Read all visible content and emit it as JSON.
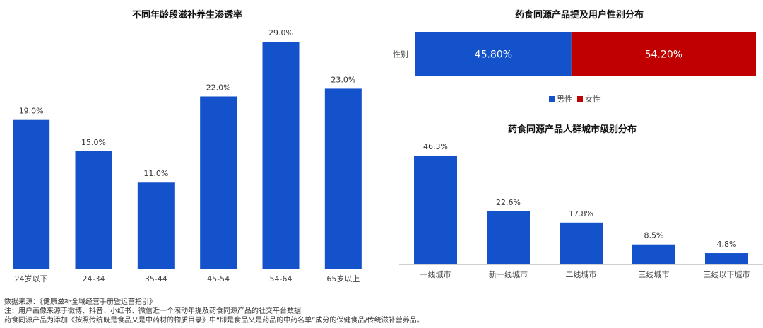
{
  "chart_data": [
    {
      "type": "bar",
      "title": "不同年龄段滋补养生渗透率",
      "categories": [
        "24岁以下",
        "24-34",
        "35-44",
        "45-54",
        "54-64",
        "65岁以上"
      ],
      "values": [
        19.0,
        15.0,
        11.0,
        22.0,
        29.0,
        23.0
      ],
      "value_labels": [
        "19.0%",
        "15.0%",
        "11.0%",
        "22.0%",
        "29.0%",
        "23.0%"
      ],
      "ylim": [
        0,
        30
      ],
      "grid": false,
      "color": "#1452cc"
    },
    {
      "type": "bar",
      "stacked": true,
      "orientation": "horizontal",
      "title": "药食同源产品提及用户性别分布",
      "categories": [
        "性别"
      ],
      "series": [
        {
          "name": "男性",
          "values": [
            45.8
          ],
          "label": "45.80%",
          "color": "#1452cc"
        },
        {
          "name": "女性",
          "values": [
            54.2
          ],
          "label": "54.20%",
          "color": "#c00000"
        }
      ],
      "legend": "bottom",
      "xlim": [
        0,
        100
      ]
    },
    {
      "type": "bar",
      "title": "药食同源产品人群城市级别分布",
      "categories": [
        "一线城市",
        "新一线城市",
        "二线城市",
        "三线城市",
        "三线以下城市"
      ],
      "values": [
        46.3,
        22.6,
        17.8,
        8.5,
        4.8
      ],
      "value_labels": [
        "46.3%",
        "22.6%",
        "17.8%",
        "8.5%",
        "4.8%"
      ],
      "ylim": [
        0,
        50
      ],
      "grid": false,
      "color": "#1452cc"
    }
  ],
  "notes": [
    "数据来源：《健康滋补全域经营手册暨运营指引》",
    "注：用户画像来源于微博、抖音、小红书、微信近一个滚动年提及药食同源产品的社交平台数据",
    "药食同源产品为添加《按照传统既是食品又是中药材的物质目录》中“即是食品又是药品的中药名单”成分的保健食品/传统滋补营养品。"
  ]
}
